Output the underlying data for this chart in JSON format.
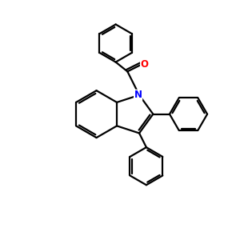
{
  "bg_color": "#ffffff",
  "line_color": "#000000",
  "N_color": "#0000ff",
  "O_color": "#ff0000",
  "line_width": 1.6,
  "figsize": [
    3.0,
    3.0
  ],
  "dpi": 100,
  "xlim": [
    -4.5,
    5.5
  ],
  "ylim": [
    -4.5,
    5.0
  ]
}
